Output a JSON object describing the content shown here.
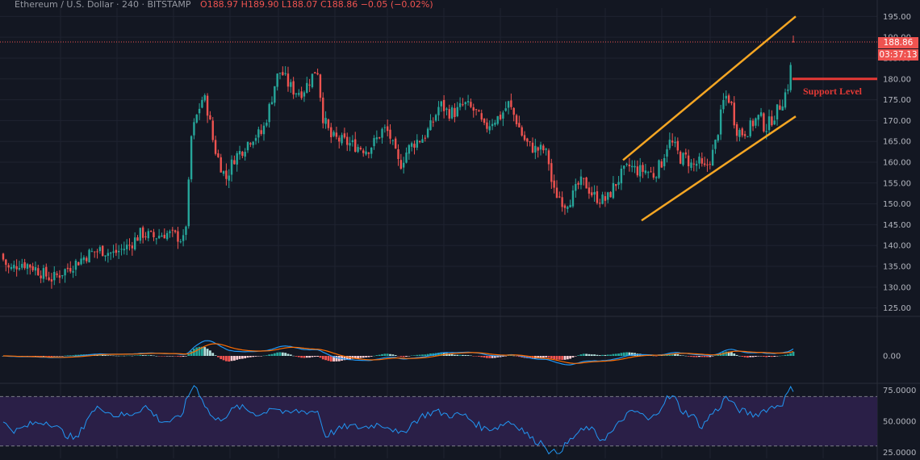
{
  "header": {
    "symbol": "Ethereum / U.S. Dollar · 240 · BITSTAMP",
    "ohlc": "O188.97  H189.90  L188.07  C188.86  −0.05 (−0.02%)"
  },
  "price_scale": {
    "last_price": "188.86",
    "countdown": "03:37:13",
    "ticks": [
      "195.00",
      "190.00",
      "185.00",
      "180.00",
      "175.00",
      "170.00",
      "165.00",
      "160.00",
      "155.00",
      "150.00",
      "145.00",
      "140.00",
      "135.00",
      "130.00",
      "125.00"
    ]
  },
  "macd_scale": {
    "ticks": [
      "0.00"
    ]
  },
  "rsi_scale": {
    "ticks": [
      "75.0000",
      "50.0000",
      "25.0000"
    ]
  },
  "annotation": {
    "support_label": "Support Level"
  },
  "colors": {
    "up": "#26a69a",
    "down": "#ef5350",
    "channel": "#f5a623",
    "support": "#e53935",
    "macd": "#2196f3",
    "signal": "#ff6d00",
    "rsi": "#2196f3"
  },
  "chart_data": [
    {
      "type": "candlestick",
      "title": "",
      "ylim": [
        123,
        197
      ],
      "anchors_close": [
        [
          0,
          138
        ],
        [
          12,
          134
        ],
        [
          25,
          136
        ],
        [
          40,
          135
        ],
        [
          55,
          133
        ],
        [
          65,
          132
        ],
        [
          80,
          134
        ],
        [
          95,
          136
        ],
        [
          110,
          138
        ],
        [
          125,
          139
        ],
        [
          140,
          138
        ],
        [
          160,
          140
        ],
        [
          175,
          143
        ],
        [
          190,
          142
        ],
        [
          205,
          143
        ],
        [
          222,
          142
        ],
        [
          228,
          141
        ],
        [
          232,
          148
        ],
        [
          237,
          166
        ],
        [
          245,
          172
        ],
        [
          252,
          176
        ],
        [
          258,
          172
        ],
        [
          265,
          164
        ],
        [
          272,
          160
        ],
        [
          280,
          156
        ],
        [
          290,
          161
        ],
        [
          300,
          163
        ],
        [
          312,
          166
        ],
        [
          325,
          167
        ],
        [
          335,
          174
        ],
        [
          342,
          180
        ],
        [
          348,
          182
        ],
        [
          356,
          179
        ],
        [
          365,
          177
        ],
        [
          375,
          177
        ],
        [
          385,
          180
        ],
        [
          393,
          183
        ],
        [
          400,
          171
        ],
        [
          410,
          166
        ],
        [
          425,
          165
        ],
        [
          440,
          164
        ],
        [
          455,
          163
        ],
        [
          465,
          165
        ],
        [
          475,
          168
        ],
        [
          482,
          167
        ],
        [
          488,
          163
        ],
        [
          495,
          159
        ],
        [
          505,
          163
        ],
        [
          515,
          165
        ],
        [
          525,
          166
        ],
        [
          535,
          169
        ],
        [
          545,
          174
        ],
        [
          555,
          172
        ],
        [
          565,
          172
        ],
        [
          575,
          174
        ],
        [
          590,
          172
        ],
        [
          600,
          168
        ],
        [
          610,
          170
        ],
        [
          620,
          171
        ],
        [
          630,
          174
        ],
        [
          640,
          170
        ],
        [
          648,
          166
        ],
        [
          655,
          164
        ],
        [
          665,
          163
        ],
        [
          675,
          163
        ],
        [
          680,
          160
        ],
        [
          685,
          153
        ],
        [
          692,
          152
        ],
        [
          700,
          150
        ],
        [
          710,
          152
        ],
        [
          718,
          155
        ],
        [
          725,
          155
        ],
        [
          735,
          152
        ],
        [
          745,
          151
        ],
        [
          752,
          151
        ],
        [
          760,
          154
        ],
        [
          770,
          157
        ],
        [
          780,
          159
        ],
        [
          790,
          158
        ],
        [
          800,
          158
        ],
        [
          810,
          157
        ],
        [
          820,
          160
        ],
        [
          828,
          165
        ],
        [
          835,
          164
        ],
        [
          843,
          161
        ],
        [
          850,
          161
        ],
        [
          858,
          159
        ],
        [
          866,
          160
        ],
        [
          872,
          158
        ],
        [
          878,
          160
        ],
        [
          885,
          163
        ],
        [
          892,
          170
        ],
        [
          898,
          176
        ],
        [
          905,
          175
        ],
        [
          912,
          168
        ],
        [
          920,
          167
        ],
        [
          928,
          168
        ],
        [
          935,
          170
        ],
        [
          942,
          171
        ],
        [
          948,
          168
        ],
        [
          955,
          170
        ],
        [
          962,
          172
        ],
        [
          970,
          175
        ],
        [
          976,
          178
        ],
        [
          980,
          183
        ],
        [
          984,
          188.86
        ]
      ],
      "channel_upper": [
        [
          160.5,
          "start"
        ],
        [
          195,
          "end"
        ]
      ],
      "channel_lower": [
        [
          146,
          "start"
        ],
        [
          171,
          "end"
        ]
      ],
      "support_level": 180
    },
    {
      "type": "line",
      "title": "",
      "series": [
        {
          "name": ""
        },
        {
          "name": ""
        }
      ],
      "histogram": true
    },
    {
      "type": "line",
      "title": "",
      "ylim": [
        20,
        80
      ],
      "bands": [
        70,
        30
      ],
      "anchors": [
        [
          0,
          50
        ],
        [
          20,
          42
        ],
        [
          40,
          48
        ],
        [
          60,
          50
        ],
        [
          80,
          40
        ],
        [
          95,
          35
        ],
        [
          110,
          55
        ],
        [
          125,
          62
        ],
        [
          140,
          55
        ],
        [
          160,
          55
        ],
        [
          180,
          62
        ],
        [
          200,
          50
        ],
        [
          215,
          50
        ],
        [
          225,
          55
        ],
        [
          232,
          68
        ],
        [
          240,
          80
        ],
        [
          248,
          72
        ],
        [
          258,
          58
        ],
        [
          268,
          50
        ],
        [
          280,
          55
        ],
        [
          295,
          62
        ],
        [
          310,
          58
        ],
        [
          325,
          55
        ],
        [
          335,
          62
        ],
        [
          345,
          60
        ],
        [
          355,
          55
        ],
        [
          365,
          58
        ],
        [
          380,
          58
        ],
        [
          395,
          58
        ],
        [
          402,
          38
        ],
        [
          415,
          42
        ],
        [
          430,
          46
        ],
        [
          450,
          45
        ],
        [
          470,
          48
        ],
        [
          485,
          45
        ],
        [
          495,
          38
        ],
        [
          510,
          48
        ],
        [
          525,
          55
        ],
        [
          540,
          58
        ],
        [
          555,
          55
        ],
        [
          575,
          55
        ],
        [
          590,
          48
        ],
        [
          600,
          44
        ],
        [
          615,
          45
        ],
        [
          630,
          50
        ],
        [
          645,
          45
        ],
        [
          660,
          35
        ],
        [
          675,
          32
        ],
        [
          682,
          24
        ],
        [
          690,
          25
        ],
        [
          700,
          30
        ],
        [
          715,
          40
        ],
        [
          730,
          45
        ],
        [
          745,
          35
        ],
        [
          760,
          42
        ],
        [
          775,
          55
        ],
        [
          790,
          58
        ],
        [
          805,
          50
        ],
        [
          815,
          58
        ],
        [
          825,
          68
        ],
        [
          835,
          70
        ],
        [
          845,
          58
        ],
        [
          858,
          55
        ],
        [
          870,
          45
        ],
        [
          880,
          55
        ],
        [
          890,
          60
        ],
        [
          900,
          70
        ],
        [
          910,
          62
        ],
        [
          920,
          58
        ],
        [
          935,
          55
        ],
        [
          950,
          60
        ],
        [
          960,
          62
        ],
        [
          970,
          65
        ],
        [
          978,
          75
        ],
        [
          984,
          77
        ]
      ]
    }
  ]
}
